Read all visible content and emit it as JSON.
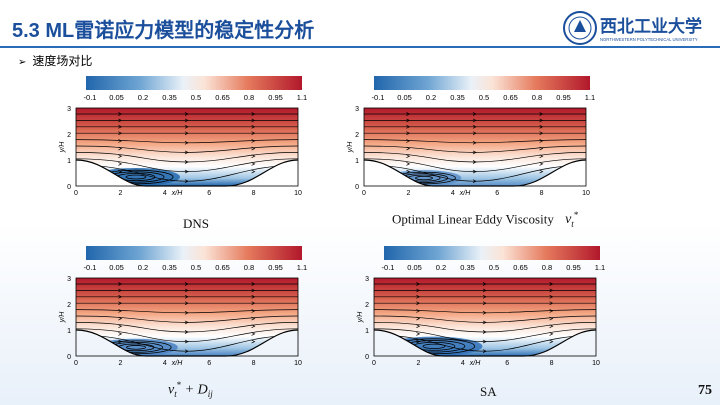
{
  "slide": {
    "title": "5.3 ML雷诺应力模型的稳定性分析",
    "bullet": "速度场对比",
    "page_number": "75"
  },
  "logo": {
    "text": "西北工业大学",
    "subtitle": "NORTHWESTERN POLYTECHNICAL UNIVERSITY"
  },
  "colorbar": {
    "ticks": [
      "-0.1",
      "0.05",
      "0.2",
      "0.35",
      "0.5",
      "0.65",
      "0.8",
      "0.95",
      "1.1"
    ]
  },
  "axes": {
    "y_ticks": [
      "0",
      "1",
      "2",
      "3"
    ],
    "x_ticks": [
      "0",
      "2",
      "4",
      "6",
      "8",
      "10"
    ],
    "ylabel": "y/H",
    "xlabel": "x/H"
  },
  "panels": [
    {
      "id": "dns",
      "caption": "DNS"
    },
    {
      "id": "oler",
      "caption": "Optimal Linear Eddy Viscosity",
      "symbol": "ν",
      "sub": "t",
      "sup": "*"
    },
    {
      "id": "dij",
      "caption": "",
      "symbol": "ν",
      "sub": "t",
      "sup": "*",
      "tail": " + D",
      "tail_sub": "ij"
    },
    {
      "id": "sa",
      "caption": "SA"
    }
  ],
  "colors": {
    "accent": "#1b4f9c",
    "high": "#c0392b",
    "low": "#2166ac"
  }
}
